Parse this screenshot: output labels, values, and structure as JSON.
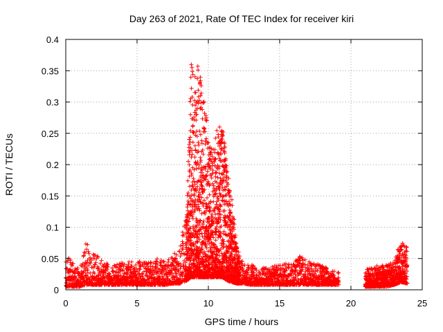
{
  "chart_data": {
    "type": "scatter",
    "title": "Day 263 of 2021, Rate Of TEC Index for receiver kiri",
    "xlabel": "GPS time / hours",
    "ylabel": "ROTI / TECUs",
    "xlim": [
      0,
      25
    ],
    "ylim": [
      0,
      0.4
    ],
    "x_ticks": [
      0,
      5,
      10,
      15,
      20,
      25
    ],
    "x_tick_labels": [
      "0",
      "5",
      "10",
      "15",
      "20",
      "25"
    ],
    "y_ticks": [
      0,
      0.05,
      0.1,
      0.15,
      0.2,
      0.25,
      0.3,
      0.35,
      0.4
    ],
    "y_tick_labels": [
      "0",
      "0.05",
      "0.1",
      "0.15",
      "0.2",
      "0.25",
      "0.3",
      "0.35",
      "0.4"
    ],
    "grid": true,
    "marker": "+",
    "color": "#ff0000",
    "series": [
      {
        "name": "ROTI",
        "envelope_hours": [
          0,
          1,
          1.4,
          2,
          3,
          4,
          5,
          6,
          7,
          7.5,
          8,
          8.5,
          8.8,
          9,
          9.3,
          9.6,
          10,
          10.3,
          10.6,
          11,
          11.3,
          11.7,
          12,
          12.5,
          13,
          14,
          15,
          16,
          16.5,
          17,
          18,
          19
        ],
        "envelope_max": [
          0.055,
          0.035,
          0.08,
          0.06,
          0.04,
          0.045,
          0.045,
          0.05,
          0.05,
          0.055,
          0.07,
          0.13,
          0.37,
          0.34,
          0.36,
          0.33,
          0.25,
          0.22,
          0.26,
          0.27,
          0.2,
          0.14,
          0.07,
          0.04,
          0.04,
          0.035,
          0.04,
          0.045,
          0.055,
          0.045,
          0.04,
          0.03
        ],
        "envelope_min": [
          0.005,
          0.005,
          0.008,
          0.008,
          0.008,
          0.008,
          0.008,
          0.008,
          0.008,
          0.01,
          0.01,
          0.015,
          0.02,
          0.02,
          0.02,
          0.02,
          0.02,
          0.02,
          0.02,
          0.02,
          0.015,
          0.012,
          0.01,
          0.01,
          0.008,
          0.008,
          0.008,
          0.008,
          0.008,
          0.008,
          0.008,
          0.008
        ],
        "gaps": [
          [
            19.2,
            21.0
          ]
        ],
        "segment2_hours": [
          21.0,
          21.5,
          22,
          22.5,
          23,
          23.3,
          23.6,
          23.9
        ],
        "segment2_max": [
          0.035,
          0.035,
          0.04,
          0.04,
          0.045,
          0.065,
          0.075,
          0.07
        ],
        "segment2_min": [
          0.005,
          0.005,
          0.005,
          0.005,
          0.008,
          0.01,
          0.012,
          0.01
        ]
      }
    ]
  }
}
